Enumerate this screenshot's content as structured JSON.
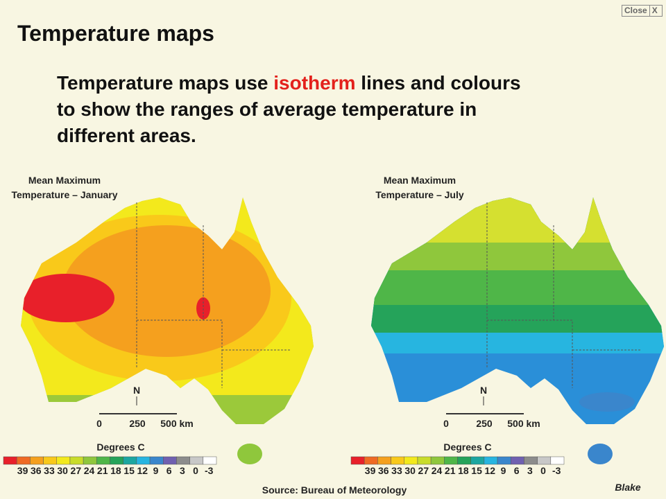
{
  "close_button": {
    "label": "Close",
    "icon": "X"
  },
  "header": {
    "title": "Temperature maps"
  },
  "body": {
    "lines": [
      [
        "Temperature maps use ",
        "isotherm",
        " lines and colours"
      ],
      [
        "to show the ranges of average temperature in"
      ],
      [
        "different areas."
      ]
    ]
  },
  "maps": [
    {
      "title_lines": [
        "Mean Maximum",
        "Temperature – January"
      ],
      "north": "N",
      "scale_labels": [
        "0",
        "250",
        "500 km"
      ],
      "legend_title": "Degrees C"
    },
    {
      "title_lines": [
        "Mean Maximum",
        "Temperature – July"
      ],
      "north": "N",
      "scale_labels": [
        "0",
        "250",
        "500 km"
      ],
      "legend_title": "Degrees C"
    }
  ],
  "legend": {
    "labels": [
      "39",
      "36",
      "33",
      "30",
      "27",
      "24",
      "21",
      "18",
      "15",
      "12",
      "9",
      "6",
      "3",
      "0",
      "-3"
    ],
    "colors": [
      "#e8202a",
      "#ef6a24",
      "#f5a01e",
      "#f9c91a",
      "#f3e91c",
      "#c9dc2a",
      "#8fc73c",
      "#4fb648",
      "#25a35a",
      "#1ca6a0",
      "#27b5e0",
      "#3a86cc",
      "#7060b0",
      "#8c8c8c",
      "#c8c8c8",
      "#ffffff"
    ]
  },
  "source": "Source: Bureau of Meteorology",
  "logo": "Blake"
}
